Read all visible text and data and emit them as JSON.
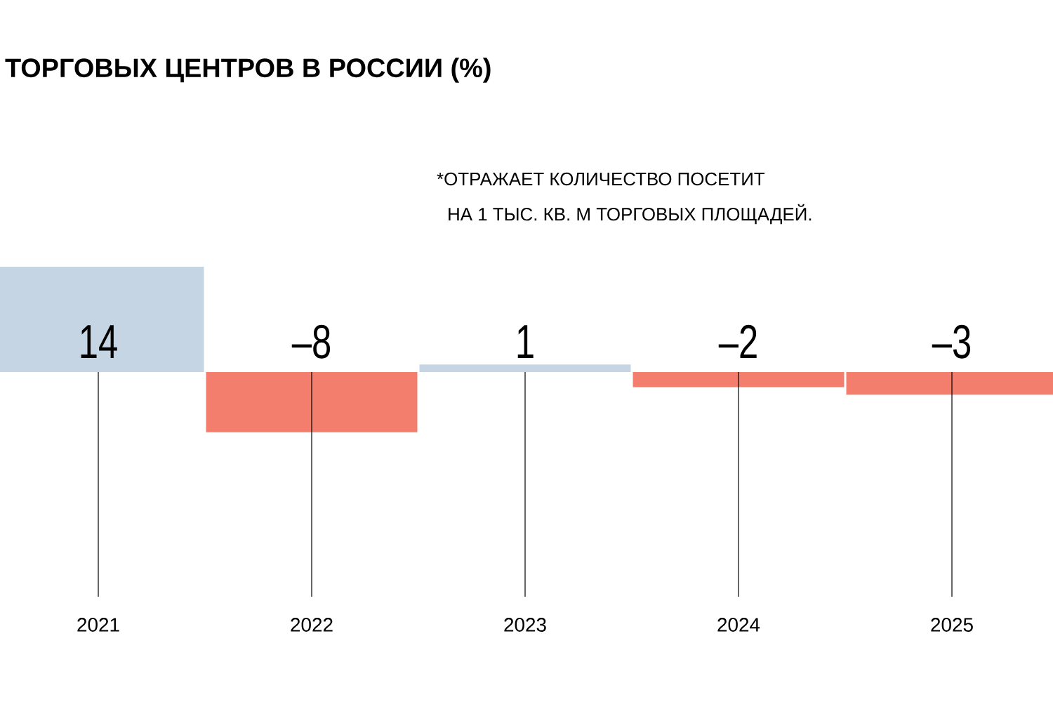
{
  "chart_data": {
    "type": "bar",
    "title": "ТОРГОВЫХ ЦЕНТРОВ В РОССИИ (%)",
    "annotations": [
      "*ОТРАЖАЕТ КОЛИЧЕСТВО ПОСЕТИТ",
      "НА 1 ТЫС. КВ. М ТОРГОВЫХ ПЛОЩАДЕЙ."
    ],
    "categories": [
      "2021",
      "2022",
      "2023",
      "2024",
      "2025"
    ],
    "values": [
      14,
      -8,
      1,
      -2,
      -3
    ],
    "colors": [
      "#c5d5e3",
      "#f47e6e",
      "#c5d5e3",
      "#f47e6e",
      "#f47e6e"
    ],
    "value_labels": [
      "14",
      "–8",
      "1",
      "–2",
      "–3"
    ],
    "grid": "x"
  }
}
